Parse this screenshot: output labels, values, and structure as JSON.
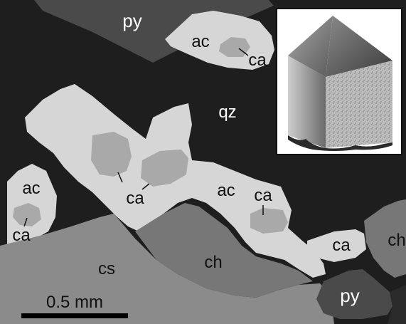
{
  "labels": {
    "py_top": "py",
    "ac_top": "ac",
    "ca_top": "ca",
    "qz": "qz",
    "ac_left": "ac",
    "ca_left_lower": "ca",
    "ca_center": "ca",
    "ac_center": "ac",
    "ca_right_center": "ca",
    "ca_right": "ca",
    "ch_right": "ch",
    "cs": "cs",
    "ch_bottom": "ch",
    "py_bottom": "py"
  },
  "scale_bar": {
    "label": "0.5 mm"
  },
  "colors": {
    "quartz": "#1e1e1e",
    "actinolite": "#d6d6d6",
    "calcite": "#a9a9a9",
    "chlorite": "#777777",
    "cs": "#8b8b8b",
    "pyrite": "#4a4a4a",
    "background": "#ffffff"
  }
}
